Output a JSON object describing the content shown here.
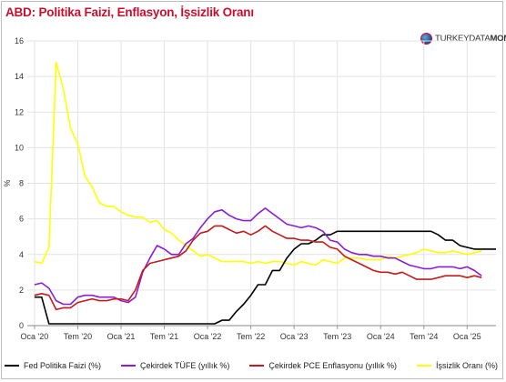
{
  "title": "ABD: Politika Faizi, Enflasyon, İşsizlik Oranı",
  "brand": {
    "part1": "TURKEYDATA",
    "part2": "MONITOR",
    "icon": "globe-icon"
  },
  "chart_data": {
    "type": "line",
    "ylabel": "%",
    "ylim": [
      0,
      16
    ],
    "yticks": [
      0,
      2,
      4,
      6,
      8,
      10,
      12,
      14,
      16
    ],
    "xlim": [
      "2019-12",
      "2025-05"
    ],
    "xticks": [
      {
        "label": "Oca '20",
        "date": "2020-01"
      },
      {
        "label": "Tem '20",
        "date": "2020-07"
      },
      {
        "label": "Oca '21",
        "date": "2021-01"
      },
      {
        "label": "Tem '21",
        "date": "2021-07"
      },
      {
        "label": "Oca '22",
        "date": "2022-01"
      },
      {
        "label": "Tem '22",
        "date": "2022-07"
      },
      {
        "label": "Oca '23",
        "date": "2023-01"
      },
      {
        "label": "Tem '23",
        "date": "2023-07"
      },
      {
        "label": "Oca '24",
        "date": "2024-01"
      },
      {
        "label": "Tem '24",
        "date": "2024-07"
      },
      {
        "label": "Oca '25",
        "date": "2025-01"
      }
    ],
    "grid": true,
    "legend": "bottom",
    "series": [
      {
        "name": "Fed Politika Faizi (%)",
        "color": "#000000",
        "points": [
          [
            "2020-01",
            1.6
          ],
          [
            "2020-02",
            1.6
          ],
          [
            "2020-03",
            0.1
          ],
          [
            "2020-04",
            0.1
          ],
          [
            "2020-06",
            0.1
          ],
          [
            "2020-09",
            0.1
          ],
          [
            "2020-12",
            0.1
          ],
          [
            "2021-03",
            0.1
          ],
          [
            "2021-06",
            0.1
          ],
          [
            "2021-09",
            0.1
          ],
          [
            "2021-12",
            0.1
          ],
          [
            "2022-02",
            0.1
          ],
          [
            "2022-03",
            0.3
          ],
          [
            "2022-04",
            0.3
          ],
          [
            "2022-05",
            0.8
          ],
          [
            "2022-06",
            1.2
          ],
          [
            "2022-07",
            1.7
          ],
          [
            "2022-08",
            2.3
          ],
          [
            "2022-09",
            2.3
          ],
          [
            "2022-10",
            3.1
          ],
          [
            "2022-11",
            3.1
          ],
          [
            "2022-12",
            3.8
          ],
          [
            "2023-01",
            4.3
          ],
          [
            "2023-02",
            4.6
          ],
          [
            "2023-03",
            4.6
          ],
          [
            "2023-04",
            4.8
          ],
          [
            "2023-05",
            5.1
          ],
          [
            "2023-06",
            5.1
          ],
          [
            "2023-07",
            5.3
          ],
          [
            "2023-08",
            5.3
          ],
          [
            "2023-10",
            5.3
          ],
          [
            "2023-12",
            5.3
          ],
          [
            "2024-03",
            5.3
          ],
          [
            "2024-06",
            5.3
          ],
          [
            "2024-08",
            5.3
          ],
          [
            "2024-09",
            5.1
          ],
          [
            "2024-10",
            4.8
          ],
          [
            "2024-11",
            4.8
          ],
          [
            "2024-12",
            4.5
          ],
          [
            "2025-02",
            4.3
          ],
          [
            "2025-05",
            4.3
          ]
        ]
      },
      {
        "name": "Çekirdek TÜFE (yıllık %)",
        "color": "#8a1ed6",
        "points": [
          [
            "2020-01",
            2.3
          ],
          [
            "2020-02",
            2.4
          ],
          [
            "2020-03",
            2.1
          ],
          [
            "2020-04",
            1.4
          ],
          [
            "2020-05",
            1.2
          ],
          [
            "2020-06",
            1.2
          ],
          [
            "2020-07",
            1.6
          ],
          [
            "2020-08",
            1.7
          ],
          [
            "2020-09",
            1.7
          ],
          [
            "2020-10",
            1.6
          ],
          [
            "2020-11",
            1.6
          ],
          [
            "2020-12",
            1.6
          ],
          [
            "2021-01",
            1.4
          ],
          [
            "2021-02",
            1.3
          ],
          [
            "2021-03",
            1.6
          ],
          [
            "2021-04",
            3.0
          ],
          [
            "2021-05",
            3.8
          ],
          [
            "2021-06",
            4.5
          ],
          [
            "2021-07",
            4.3
          ],
          [
            "2021-08",
            4.0
          ],
          [
            "2021-09",
            4.0
          ],
          [
            "2021-10",
            4.6
          ],
          [
            "2021-11",
            4.9
          ],
          [
            "2021-12",
            5.5
          ],
          [
            "2022-01",
            6.0
          ],
          [
            "2022-02",
            6.4
          ],
          [
            "2022-03",
            6.5
          ],
          [
            "2022-04",
            6.2
          ],
          [
            "2022-05",
            6.0
          ],
          [
            "2022-06",
            5.9
          ],
          [
            "2022-07",
            5.9
          ],
          [
            "2022-08",
            6.3
          ],
          [
            "2022-09",
            6.6
          ],
          [
            "2022-10",
            6.3
          ],
          [
            "2022-11",
            6.0
          ],
          [
            "2022-12",
            5.7
          ],
          [
            "2023-01",
            5.6
          ],
          [
            "2023-02",
            5.5
          ],
          [
            "2023-03",
            5.6
          ],
          [
            "2023-04",
            5.5
          ],
          [
            "2023-05",
            5.3
          ],
          [
            "2023-06",
            4.8
          ],
          [
            "2023-07",
            4.7
          ],
          [
            "2023-08",
            4.3
          ],
          [
            "2023-09",
            4.1
          ],
          [
            "2023-10",
            4.0
          ],
          [
            "2023-11",
            4.0
          ],
          [
            "2023-12",
            3.9
          ],
          [
            "2024-01",
            3.9
          ],
          [
            "2024-02",
            3.8
          ],
          [
            "2024-03",
            3.8
          ],
          [
            "2024-04",
            3.6
          ],
          [
            "2024-05",
            3.4
          ],
          [
            "2024-06",
            3.3
          ],
          [
            "2024-07",
            3.2
          ],
          [
            "2024-08",
            3.2
          ],
          [
            "2024-09",
            3.3
          ],
          [
            "2024-10",
            3.3
          ],
          [
            "2024-11",
            3.3
          ],
          [
            "2024-12",
            3.2
          ],
          [
            "2025-01",
            3.3
          ],
          [
            "2025-02",
            3.1
          ],
          [
            "2025-03",
            2.8
          ]
        ]
      },
      {
        "name": "Çekirdek PCE Enflasyonu (yıllık %)",
        "color": "#c41a1a",
        "points": [
          [
            "2020-01",
            1.7
          ],
          [
            "2020-02",
            1.8
          ],
          [
            "2020-03",
            1.7
          ],
          [
            "2020-04",
            0.9
          ],
          [
            "2020-05",
            1.0
          ],
          [
            "2020-06",
            1.0
          ],
          [
            "2020-07",
            1.3
          ],
          [
            "2020-08",
            1.4
          ],
          [
            "2020-09",
            1.5
          ],
          [
            "2020-10",
            1.4
          ],
          [
            "2020-11",
            1.4
          ],
          [
            "2020-12",
            1.5
          ],
          [
            "2021-01",
            1.5
          ],
          [
            "2021-02",
            1.4
          ],
          [
            "2021-03",
            2.0
          ],
          [
            "2021-04",
            3.1
          ],
          [
            "2021-05",
            3.5
          ],
          [
            "2021-06",
            3.6
          ],
          [
            "2021-07",
            3.7
          ],
          [
            "2021-08",
            3.8
          ],
          [
            "2021-09",
            3.9
          ],
          [
            "2021-10",
            4.2
          ],
          [
            "2021-11",
            4.8
          ],
          [
            "2021-12",
            5.2
          ],
          [
            "2022-01",
            5.3
          ],
          [
            "2022-02",
            5.6
          ],
          [
            "2022-03",
            5.6
          ],
          [
            "2022-04",
            5.4
          ],
          [
            "2022-05",
            5.2
          ],
          [
            "2022-06",
            5.3
          ],
          [
            "2022-07",
            5.1
          ],
          [
            "2022-08",
            5.3
          ],
          [
            "2022-09",
            5.6
          ],
          [
            "2022-10",
            5.3
          ],
          [
            "2022-11",
            5.1
          ],
          [
            "2022-12",
            4.9
          ],
          [
            "2023-01",
            4.9
          ],
          [
            "2023-02",
            4.8
          ],
          [
            "2023-03",
            4.8
          ],
          [
            "2023-04",
            4.7
          ],
          [
            "2023-05",
            4.7
          ],
          [
            "2023-06",
            4.4
          ],
          [
            "2023-07",
            4.3
          ],
          [
            "2023-08",
            3.9
          ],
          [
            "2023-09",
            3.7
          ],
          [
            "2023-10",
            3.5
          ],
          [
            "2023-11",
            3.3
          ],
          [
            "2023-12",
            3.1
          ],
          [
            "2024-01",
            3.0
          ],
          [
            "2024-02",
            3.0
          ],
          [
            "2024-03",
            2.9
          ],
          [
            "2024-04",
            3.0
          ],
          [
            "2024-05",
            2.8
          ],
          [
            "2024-06",
            2.6
          ],
          [
            "2024-07",
            2.6
          ],
          [
            "2024-08",
            2.6
          ],
          [
            "2024-09",
            2.7
          ],
          [
            "2024-10",
            2.8
          ],
          [
            "2024-11",
            2.8
          ],
          [
            "2024-12",
            2.8
          ],
          [
            "2025-01",
            2.7
          ],
          [
            "2025-02",
            2.8
          ],
          [
            "2025-03",
            2.7
          ]
        ]
      },
      {
        "name": "İşsizlik Oranı (%)",
        "color": "#ffff00",
        "points": [
          [
            "2020-01",
            3.6
          ],
          [
            "2020-02",
            3.5
          ],
          [
            "2020-03",
            4.4
          ],
          [
            "2020-04",
            14.8
          ],
          [
            "2020-05",
            13.3
          ],
          [
            "2020-06",
            11.1
          ],
          [
            "2020-07",
            10.2
          ],
          [
            "2020-08",
            8.4
          ],
          [
            "2020-09",
            7.8
          ],
          [
            "2020-10",
            6.9
          ],
          [
            "2020-11",
            6.7
          ],
          [
            "2020-12",
            6.7
          ],
          [
            "2021-01",
            6.4
          ],
          [
            "2021-02",
            6.2
          ],
          [
            "2021-03",
            6.1
          ],
          [
            "2021-04",
            6.1
          ],
          [
            "2021-05",
            5.8
          ],
          [
            "2021-06",
            5.9
          ],
          [
            "2021-07",
            5.4
          ],
          [
            "2021-08",
            5.2
          ],
          [
            "2021-09",
            4.8
          ],
          [
            "2021-10",
            4.5
          ],
          [
            "2021-11",
            4.2
          ],
          [
            "2021-12",
            3.9
          ],
          [
            "2022-01",
            4.0
          ],
          [
            "2022-02",
            3.8
          ],
          [
            "2022-03",
            3.6
          ],
          [
            "2022-04",
            3.6
          ],
          [
            "2022-05",
            3.6
          ],
          [
            "2022-06",
            3.6
          ],
          [
            "2022-07",
            3.5
          ],
          [
            "2022-08",
            3.6
          ],
          [
            "2022-09",
            3.5
          ],
          [
            "2022-10",
            3.6
          ],
          [
            "2022-11",
            3.6
          ],
          [
            "2022-12",
            3.5
          ],
          [
            "2023-01",
            3.4
          ],
          [
            "2023-02",
            3.6
          ],
          [
            "2023-03",
            3.5
          ],
          [
            "2023-04",
            3.4
          ],
          [
            "2023-05",
            3.7
          ],
          [
            "2023-06",
            3.6
          ],
          [
            "2023-07",
            3.5
          ],
          [
            "2023-08",
            3.8
          ],
          [
            "2023-09",
            3.8
          ],
          [
            "2023-10",
            3.8
          ],
          [
            "2023-11",
            3.7
          ],
          [
            "2023-12",
            3.7
          ],
          [
            "2024-01",
            3.7
          ],
          [
            "2024-02",
            3.9
          ],
          [
            "2024-03",
            3.8
          ],
          [
            "2024-04",
            3.9
          ],
          [
            "2024-05",
            4.0
          ],
          [
            "2024-06",
            4.1
          ],
          [
            "2024-07",
            4.3
          ],
          [
            "2024-08",
            4.2
          ],
          [
            "2024-09",
            4.1
          ],
          [
            "2024-10",
            4.1
          ],
          [
            "2024-11",
            4.2
          ],
          [
            "2024-12",
            4.1
          ],
          [
            "2025-01",
            4.0
          ],
          [
            "2025-02",
            4.1
          ],
          [
            "2025-03",
            4.2
          ]
        ]
      }
    ]
  }
}
